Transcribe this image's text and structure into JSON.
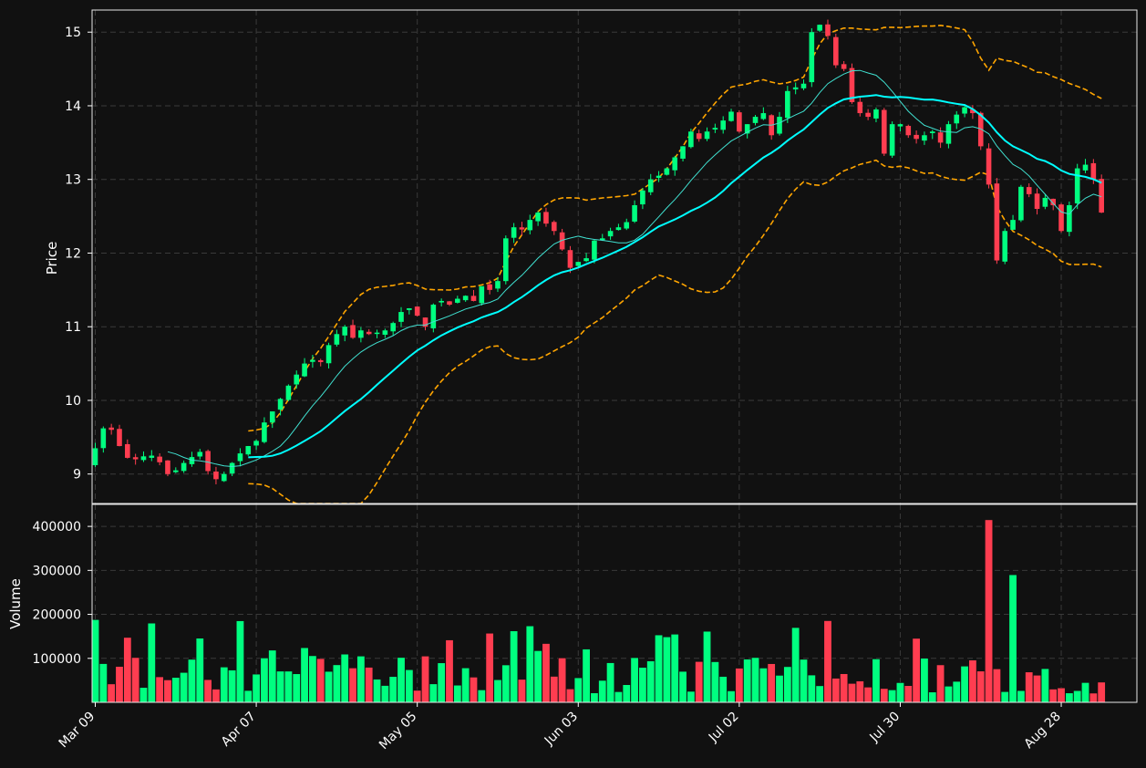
{
  "chart_data": {
    "type": "candlestick",
    "price_axis": {
      "label": "Price",
      "ylim": [
        8.6,
        15.3
      ],
      "ticks": [
        9,
        10,
        11,
        12,
        13,
        14,
        15
      ]
    },
    "volume_axis": {
      "label": "Volume",
      "ylim": [
        0,
        450000
      ],
      "ticks": [
        100000,
        200000,
        300000,
        400000
      ],
      "tick_labels": [
        "100000",
        "200000",
        "300000",
        "400000"
      ]
    },
    "x_axis": {
      "start_index": 0,
      "end_index": 129,
      "tick_indices": [
        0,
        20,
        40,
        60,
        80,
        100,
        120
      ],
      "tick_labels": [
        "Mar 09",
        "Apr 07",
        "May 05",
        "Jun 03",
        "Jul 02",
        "Jul 30",
        "Aug 28"
      ]
    },
    "grid": true,
    "colors": {
      "up": "#00ff80",
      "down": "#ff3d50",
      "bollinger": "#ffa500",
      "sma_fast": "#40e0d0",
      "sma_slow": "#00ffff",
      "background": "#111111"
    },
    "closes": [
      9.35,
      9.62,
      9.6,
      9.38,
      9.22,
      9.2,
      9.24,
      9.25,
      9.16,
      9.0,
      9.05,
      9.15,
      9.23,
      9.3,
      9.04,
      8.93,
      9.0,
      9.15,
      9.28,
      9.38,
      9.45,
      9.7,
      9.85,
      10.02,
      10.2,
      10.35,
      10.5,
      10.55,
      10.52,
      10.75,
      10.9,
      11.0,
      10.85,
      10.95,
      10.9,
      10.92,
      10.95,
      11.05,
      11.2,
      11.25,
      11.15,
      11.0,
      11.3,
      11.35,
      11.3,
      11.38,
      11.42,
      11.35,
      11.55,
      11.5,
      11.62,
      12.2,
      12.35,
      12.32,
      12.45,
      12.55,
      12.4,
      12.3,
      12.05,
      11.8,
      11.88,
      11.93,
      12.17,
      12.2,
      12.3,
      12.35,
      12.42,
      12.65,
      12.85,
      13.0,
      13.05,
      13.15,
      13.3,
      13.45,
      13.65,
      13.55,
      13.65,
      13.7,
      13.8,
      13.92,
      13.65,
      13.75,
      13.85,
      13.9,
      13.6,
      13.85,
      14.2,
      14.25,
      14.3,
      15.0,
      15.1,
      14.95,
      14.55,
      14.5,
      14.05,
      13.9,
      13.85,
      13.95,
      13.35,
      13.75,
      13.75,
      13.6,
      13.55,
      13.6,
      13.65,
      13.5,
      13.75,
      13.88,
      13.98,
      13.9,
      13.45,
      12.93,
      11.9,
      12.3,
      12.45,
      12.9,
      12.8,
      12.6,
      12.75,
      12.65,
      12.3,
      12.65,
      13.15,
      13.2,
      13.0,
      12.55
    ]
  }
}
